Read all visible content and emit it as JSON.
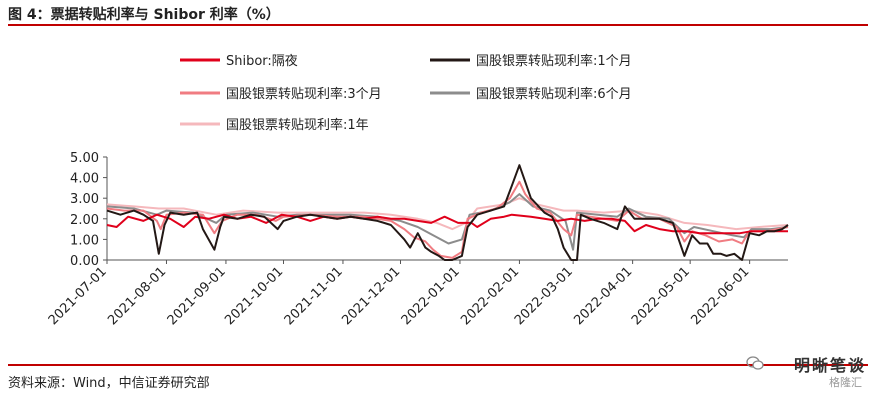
{
  "header": {
    "title": "图 4：票据转贴利率与 Shibor 利率（%）"
  },
  "footer": {
    "source": "资料来源：Wind，中信证券研究部"
  },
  "watermark": {
    "name": "明晰笔谈",
    "logo_text": "格隆汇"
  },
  "chart_data": {
    "type": "line",
    "title": "图 4：票据转贴利率与 Shibor 利率（%）",
    "xlabel": "",
    "ylabel": "",
    "ylim": [
      0,
      5
    ],
    "yticks": [
      "5.00",
      "4.00",
      "3.00",
      "2.00",
      "1.00",
      "0.00"
    ],
    "x_start": "2021-07-01",
    "x_end": "2022-06-21",
    "xticks": [
      "2021-07-01",
      "2021-08-01",
      "2021-09-01",
      "2021-10-01",
      "2021-11-01",
      "2021-12-01",
      "2022-01-01",
      "2022-02-01",
      "2022-03-01",
      "2022-04-01",
      "2022-05-01",
      "2022-06-01"
    ],
    "grid": false,
    "legend_position": "top",
    "series": [
      {
        "name": "Shibor:隔夜",
        "color": "#e0001b",
        "points": [
          [
            "2021-07-01",
            1.7
          ],
          [
            "2021-07-06",
            1.6
          ],
          [
            "2021-07-12",
            2.1
          ],
          [
            "2021-07-20",
            1.9
          ],
          [
            "2021-07-27",
            2.2
          ],
          [
            "2021-08-03",
            2.0
          ],
          [
            "2021-08-10",
            1.6
          ],
          [
            "2021-08-16",
            2.1
          ],
          [
            "2021-08-23",
            2.0
          ],
          [
            "2021-08-31",
            2.2
          ],
          [
            "2021-09-07",
            2.0
          ],
          [
            "2021-09-14",
            2.1
          ],
          [
            "2021-09-22",
            1.8
          ],
          [
            "2021-09-30",
            2.2
          ],
          [
            "2021-10-08",
            2.1
          ],
          [
            "2021-10-15",
            1.9
          ],
          [
            "2021-10-22",
            2.1
          ],
          [
            "2021-10-29",
            2.0
          ],
          [
            "2021-11-05",
            2.1
          ],
          [
            "2021-11-12",
            2.0
          ],
          [
            "2021-11-19",
            2.1
          ],
          [
            "2021-11-26",
            2.0
          ],
          [
            "2021-12-03",
            2.0
          ],
          [
            "2021-12-10",
            1.9
          ],
          [
            "2021-12-17",
            1.8
          ],
          [
            "2021-12-24",
            2.1
          ],
          [
            "2021-12-31",
            1.8
          ],
          [
            "2022-01-07",
            1.8
          ],
          [
            "2022-01-10",
            1.6
          ],
          [
            "2022-01-17",
            2.0
          ],
          [
            "2022-01-24",
            2.1
          ],
          [
            "2022-01-28",
            2.2
          ],
          [
            "2022-02-07",
            2.1
          ],
          [
            "2022-02-14",
            2.0
          ],
          [
            "2022-02-21",
            1.9
          ],
          [
            "2022-02-28",
            2.0
          ],
          [
            "2022-03-07",
            1.9
          ],
          [
            "2022-03-14",
            2.0
          ],
          [
            "2022-03-21",
            2.0
          ],
          [
            "2022-03-28",
            1.9
          ],
          [
            "2022-04-02",
            1.4
          ],
          [
            "2022-04-08",
            1.7
          ],
          [
            "2022-04-15",
            1.5
          ],
          [
            "2022-04-22",
            1.4
          ],
          [
            "2022-04-29",
            1.4
          ],
          [
            "2022-05-06",
            1.3
          ],
          [
            "2022-05-13",
            1.3
          ],
          [
            "2022-05-20",
            1.3
          ],
          [
            "2022-05-27",
            1.3
          ],
          [
            "2022-06-02",
            1.4
          ],
          [
            "2022-06-09",
            1.4
          ],
          [
            "2022-06-16",
            1.4
          ],
          [
            "2022-06-21",
            1.4
          ]
        ]
      },
      {
        "name": "国股银票转贴现利率:1个月",
        "color": "#231815",
        "points": [
          [
            "2021-07-01",
            2.4
          ],
          [
            "2021-07-08",
            2.2
          ],
          [
            "2021-07-15",
            2.4
          ],
          [
            "2021-07-20",
            2.2
          ],
          [
            "2021-07-25",
            1.9
          ],
          [
            "2021-07-28",
            0.3
          ],
          [
            "2021-07-31",
            1.7
          ],
          [
            "2021-08-03",
            2.3
          ],
          [
            "2021-08-10",
            2.2
          ],
          [
            "2021-08-17",
            2.3
          ],
          [
            "2021-08-20",
            1.5
          ],
          [
            "2021-08-26",
            0.5
          ],
          [
            "2021-08-29",
            1.6
          ],
          [
            "2021-08-31",
            2.1
          ],
          [
            "2021-09-07",
            2.0
          ],
          [
            "2021-09-14",
            2.2
          ],
          [
            "2021-09-21",
            2.1
          ],
          [
            "2021-09-28",
            1.5
          ],
          [
            "2021-10-01",
            1.9
          ],
          [
            "2021-10-08",
            2.1
          ],
          [
            "2021-10-15",
            2.2
          ],
          [
            "2021-10-22",
            2.1
          ],
          [
            "2021-10-29",
            2.0
          ],
          [
            "2021-11-05",
            2.1
          ],
          [
            "2021-11-12",
            2.0
          ],
          [
            "2021-11-19",
            1.9
          ],
          [
            "2021-11-26",
            1.7
          ],
          [
            "2021-12-03",
            1.0
          ],
          [
            "2021-12-06",
            0.6
          ],
          [
            "2021-12-10",
            1.3
          ],
          [
            "2021-12-14",
            0.6
          ],
          [
            "2021-12-17",
            0.4
          ],
          [
            "2021-12-21",
            0.2
          ],
          [
            "2021-12-24",
            0.0
          ],
          [
            "2021-12-28",
            0.0
          ],
          [
            "2022-01-02",
            0.2
          ],
          [
            "2022-01-05",
            1.6
          ],
          [
            "2022-01-10",
            2.2
          ],
          [
            "2022-01-17",
            2.4
          ],
          [
            "2022-01-24",
            2.6
          ],
          [
            "2022-01-28",
            3.6
          ],
          [
            "2022-02-01",
            4.6
          ],
          [
            "2022-02-04",
            3.8
          ],
          [
            "2022-02-07",
            3.0
          ],
          [
            "2022-02-14",
            2.3
          ],
          [
            "2022-02-18",
            2.1
          ],
          [
            "2022-02-21",
            1.5
          ],
          [
            "2022-02-24",
            0.6
          ],
          [
            "2022-02-28",
            0.0
          ],
          [
            "2022-03-03",
            0.0
          ],
          [
            "2022-03-05",
            2.2
          ],
          [
            "2022-03-10",
            2.0
          ],
          [
            "2022-03-17",
            1.8
          ],
          [
            "2022-03-24",
            1.5
          ],
          [
            "2022-03-28",
            2.6
          ],
          [
            "2022-04-02",
            2.0
          ],
          [
            "2022-04-08",
            2.0
          ],
          [
            "2022-04-15",
            2.0
          ],
          [
            "2022-04-22",
            1.8
          ],
          [
            "2022-04-25",
            1.0
          ],
          [
            "2022-04-28",
            0.2
          ],
          [
            "2022-05-02",
            1.2
          ],
          [
            "2022-05-06",
            0.8
          ],
          [
            "2022-05-10",
            0.8
          ],
          [
            "2022-05-13",
            0.3
          ],
          [
            "2022-05-17",
            0.3
          ],
          [
            "2022-05-20",
            0.2
          ],
          [
            "2022-05-24",
            0.3
          ],
          [
            "2022-05-28",
            0.0
          ],
          [
            "2022-06-01",
            1.3
          ],
          [
            "2022-06-06",
            1.2
          ],
          [
            "2022-06-10",
            1.4
          ],
          [
            "2022-06-14",
            1.4
          ],
          [
            "2022-06-18",
            1.5
          ],
          [
            "2022-06-21",
            1.7
          ]
        ]
      },
      {
        "name": "国股银票转贴现利率:3个月",
        "color": "#f07c82",
        "points": [
          [
            "2021-07-01",
            2.5
          ],
          [
            "2021-07-10",
            2.4
          ],
          [
            "2021-07-20",
            2.4
          ],
          [
            "2021-07-27",
            1.9
          ],
          [
            "2021-07-29",
            1.5
          ],
          [
            "2021-08-01",
            2.2
          ],
          [
            "2021-08-10",
            2.3
          ],
          [
            "2021-08-20",
            2.2
          ],
          [
            "2021-08-26",
            1.3
          ],
          [
            "2021-08-30",
            1.9
          ],
          [
            "2021-09-07",
            2.2
          ],
          [
            "2021-09-17",
            2.2
          ],
          [
            "2021-09-27",
            1.9
          ],
          [
            "2021-10-01",
            2.1
          ],
          [
            "2021-10-15",
            2.2
          ],
          [
            "2021-10-29",
            2.1
          ],
          [
            "2021-11-12",
            2.1
          ],
          [
            "2021-11-26",
            1.9
          ],
          [
            "2021-12-03",
            1.5
          ],
          [
            "2021-12-08",
            1.1
          ],
          [
            "2021-12-14",
            0.9
          ],
          [
            "2021-12-18",
            0.5
          ],
          [
            "2021-12-22",
            0.2
          ],
          [
            "2021-12-28",
            0.1
          ],
          [
            "2022-01-02",
            0.4
          ],
          [
            "2022-01-05",
            2.0
          ],
          [
            "2022-01-12",
            2.3
          ],
          [
            "2022-01-20",
            2.5
          ],
          [
            "2022-01-27",
            3.0
          ],
          [
            "2022-02-01",
            3.8
          ],
          [
            "2022-02-04",
            3.2
          ],
          [
            "2022-02-10",
            2.5
          ],
          [
            "2022-02-17",
            2.3
          ],
          [
            "2022-02-24",
            1.5
          ],
          [
            "2022-02-28",
            1.2
          ],
          [
            "2022-03-03",
            2.2
          ],
          [
            "2022-03-10",
            2.1
          ],
          [
            "2022-03-17",
            2.0
          ],
          [
            "2022-03-24",
            1.9
          ],
          [
            "2022-03-30",
            2.4
          ],
          [
            "2022-04-06",
            2.0
          ],
          [
            "2022-04-15",
            2.0
          ],
          [
            "2022-04-24",
            1.6
          ],
          [
            "2022-04-28",
            0.9
          ],
          [
            "2022-05-02",
            1.4
          ],
          [
            "2022-05-09",
            1.2
          ],
          [
            "2022-05-16",
            0.9
          ],
          [
            "2022-05-23",
            1.0
          ],
          [
            "2022-05-28",
            0.8
          ],
          [
            "2022-06-01",
            1.4
          ],
          [
            "2022-06-10",
            1.4
          ],
          [
            "2022-06-21",
            1.6
          ]
        ]
      },
      {
        "name": "国股银票转贴现利率:6个月",
        "color": "#8c8c8c",
        "points": [
          [
            "2021-07-01",
            2.6
          ],
          [
            "2021-07-15",
            2.5
          ],
          [
            "2021-07-27",
            2.2
          ],
          [
            "2021-08-01",
            2.4
          ],
          [
            "2021-08-15",
            2.3
          ],
          [
            "2021-08-27",
            1.8
          ],
          [
            "2021-09-01",
            2.2
          ],
          [
            "2021-09-15",
            2.3
          ],
          [
            "2021-09-28",
            2.1
          ],
          [
            "2021-10-08",
            2.2
          ],
          [
            "2021-10-22",
            2.2
          ],
          [
            "2021-11-05",
            2.2
          ],
          [
            "2021-11-19",
            2.1
          ],
          [
            "2021-12-01",
            1.9
          ],
          [
            "2021-12-10",
            1.6
          ],
          [
            "2021-12-18",
            1.2
          ],
          [
            "2021-12-26",
            0.8
          ],
          [
            "2022-01-02",
            1.0
          ],
          [
            "2022-01-06",
            2.2
          ],
          [
            "2022-01-17",
            2.4
          ],
          [
            "2022-01-27",
            2.8
          ],
          [
            "2022-02-01",
            3.2
          ],
          [
            "2022-02-08",
            2.6
          ],
          [
            "2022-02-17",
            2.4
          ],
          [
            "2022-02-25",
            1.9
          ],
          [
            "2022-03-01",
            0.5
          ],
          [
            "2022-03-03",
            2.3
          ],
          [
            "2022-03-14",
            2.2
          ],
          [
            "2022-03-24",
            2.1
          ],
          [
            "2022-03-30",
            2.5
          ],
          [
            "2022-04-08",
            2.1
          ],
          [
            "2022-04-20",
            2.0
          ],
          [
            "2022-04-28",
            1.3
          ],
          [
            "2022-05-03",
            1.6
          ],
          [
            "2022-05-13",
            1.4
          ],
          [
            "2022-05-23",
            1.2
          ],
          [
            "2022-05-29",
            1.1
          ],
          [
            "2022-06-02",
            1.5
          ],
          [
            "2022-06-12",
            1.5
          ],
          [
            "2022-06-21",
            1.6
          ]
        ]
      },
      {
        "name": "国股银票转贴现利率:1年",
        "color": "#f5b8bc",
        "points": [
          [
            "2021-07-01",
            2.7
          ],
          [
            "2021-07-15",
            2.6
          ],
          [
            "2021-07-28",
            2.5
          ],
          [
            "2021-08-10",
            2.5
          ],
          [
            "2021-08-27",
            2.2
          ],
          [
            "2021-09-10",
            2.4
          ],
          [
            "2021-09-28",
            2.3
          ],
          [
            "2021-10-12",
            2.3
          ],
          [
            "2021-10-29",
            2.3
          ],
          [
            "2021-11-12",
            2.3
          ],
          [
            "2021-11-26",
            2.2
          ],
          [
            "2021-12-10",
            2.0
          ],
          [
            "2021-12-20",
            1.8
          ],
          [
            "2021-12-28",
            1.5
          ],
          [
            "2022-01-04",
            1.8
          ],
          [
            "2022-01-10",
            2.5
          ],
          [
            "2022-01-24",
            2.7
          ],
          [
            "2022-02-01",
            3.0
          ],
          [
            "2022-02-10",
            2.7
          ],
          [
            "2022-02-24",
            2.4
          ],
          [
            "2022-03-03",
            2.4
          ],
          [
            "2022-03-17",
            2.3
          ],
          [
            "2022-03-31",
            2.4
          ],
          [
            "2022-04-14",
            2.2
          ],
          [
            "2022-04-28",
            1.8
          ],
          [
            "2022-05-10",
            1.7
          ],
          [
            "2022-05-25",
            1.5
          ],
          [
            "2022-06-06",
            1.6
          ],
          [
            "2022-06-21",
            1.7
          ]
        ]
      }
    ]
  }
}
